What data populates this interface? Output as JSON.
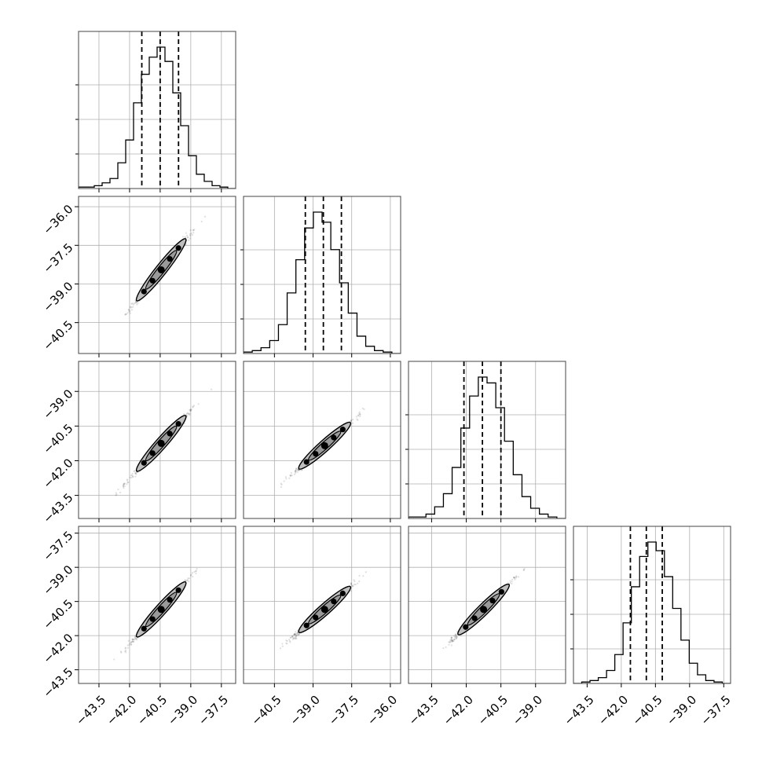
{
  "chart_data": {
    "type": "scatter",
    "title": "",
    "variables": [
      {
        "range": [
          -44.5,
          -36.8
        ],
        "ticks": [
          -43.5,
          -42.0,
          -40.5,
          -39.0,
          -37.5
        ],
        "tick_labels": [
          "−43.5",
          "−42.0",
          "−40.5",
          "−39.0",
          "−37.5"
        ],
        "quantiles": [
          -41.4,
          -40.5,
          -39.6
        ],
        "hist": [
          0.01,
          0.01,
          0.02,
          0.04,
          0.07,
          0.18,
          0.34,
          0.6,
          0.8,
          0.92,
          0.99,
          0.89,
          0.67,
          0.44,
          0.23,
          0.1,
          0.05,
          0.02,
          0.01,
          0.0
        ]
      },
      {
        "range": [
          -41.7,
          -35.6
        ],
        "ticks": [
          -40.5,
          -39.0,
          -37.5,
          -36.0
        ],
        "tick_labels": [
          "−40.5",
          "−39.0",
          "−37.5",
          "−36.0"
        ],
        "quantiles": [
          -39.3,
          -38.6,
          -37.9
        ],
        "hist": [
          0.01,
          0.02,
          0.04,
          0.09,
          0.2,
          0.42,
          0.65,
          0.87,
          0.98,
          0.91,
          0.72,
          0.49,
          0.28,
          0.12,
          0.05,
          0.02,
          0.01,
          0.0
        ]
      },
      {
        "range": [
          -44.5,
          -37.7
        ],
        "ticks": [
          -43.5,
          -42.0,
          -40.5,
          -39.0
        ],
        "tick_labels": [
          "−43.5",
          "−42.0",
          "−40.5",
          "−39.0"
        ],
        "quantiles": [
          -42.1,
          -41.3,
          -40.5
        ],
        "hist": [
          0.01,
          0.01,
          0.03,
          0.08,
          0.17,
          0.35,
          0.62,
          0.84,
          0.97,
          0.93,
          0.76,
          0.53,
          0.3,
          0.15,
          0.07,
          0.03,
          0.01,
          0.0
        ]
      },
      {
        "range": [
          -44.1,
          -37.2
        ],
        "ticks": [
          -43.5,
          -42.0,
          -40.5,
          -39.0,
          -37.5
        ],
        "tick_labels": [
          "−43.5",
          "−42.0",
          "−40.5",
          "−39.0",
          "−37.5"
        ],
        "quantiles": [
          -41.6,
          -40.9,
          -40.2
        ],
        "hist": [
          0.0,
          0.01,
          0.02,
          0.04,
          0.09,
          0.2,
          0.42,
          0.67,
          0.88,
          0.98,
          0.92,
          0.74,
          0.52,
          0.3,
          0.14,
          0.06,
          0.02,
          0.01,
          0.0
        ]
      }
    ],
    "pairs": [
      {
        "row": 1,
        "col": 0,
        "slope": 1.0,
        "intercept": 2.0,
        "width": 0.12
      },
      {
        "row": 2,
        "col": 0,
        "slope": 1.0,
        "intercept": -0.8,
        "width": 0.12
      },
      {
        "row": 2,
        "col": 1,
        "slope": 1.0,
        "intercept": -2.8,
        "width": 0.12
      },
      {
        "row": 3,
        "col": 0,
        "slope": 1.0,
        "intercept": -0.4,
        "width": 0.12
      },
      {
        "row": 3,
        "col": 1,
        "slope": 1.0,
        "intercept": -2.3,
        "width": 0.12
      },
      {
        "row": 3,
        "col": 2,
        "slope": 1.0,
        "intercept": 0.4,
        "width": 0.12
      }
    ],
    "grid": true,
    "legend": "none"
  },
  "colors": {
    "line": "#000000",
    "grid": "#b0b0b0",
    "density_fill": "#bfbfbf",
    "scatter": "#000000"
  }
}
